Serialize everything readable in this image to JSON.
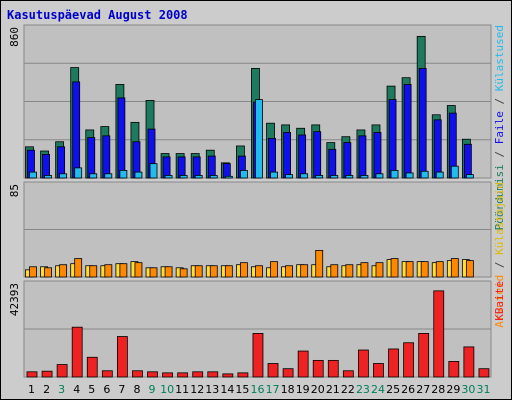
{
  "title": "Kasutuspäevad August 2008",
  "chart_data": [
    {
      "type": "bar",
      "panel": "top",
      "categories": [
        "1",
        "2",
        "3",
        "4",
        "5",
        "6",
        "7",
        "8",
        "9",
        "10",
        "11",
        "12",
        "13",
        "14",
        "15",
        "16",
        "17",
        "18",
        "19",
        "20",
        "21",
        "22",
        "23",
        "24",
        "25",
        "26",
        "27",
        "28",
        "29",
        "30",
        "31"
      ],
      "ymax_label": "860",
      "ylim": [
        0,
        860
      ],
      "series": [
        {
          "name": "Pöördumisi",
          "color": "#1e7a5e",
          "values": [
            185,
            160,
            215,
            655,
            285,
            305,
            555,
            330,
            460,
            145,
            145,
            145,
            165,
            90,
            190,
            650,
            325,
            315,
            295,
            315,
            210,
            245,
            285,
            315,
            545,
            595,
            840,
            375,
            430,
            230,
            0
          ]
        },
        {
          "name": "Faile",
          "color": "#1010ee",
          "values": [
            165,
            140,
            185,
            570,
            240,
            250,
            475,
            215,
            290,
            125,
            125,
            125,
            130,
            85,
            130,
            450,
            235,
            270,
            255,
            275,
            170,
            210,
            250,
            270,
            465,
            555,
            650,
            345,
            385,
            200,
            0
          ]
        },
        {
          "name": "Külastused",
          "color": "#22bbee",
          "values": [
            35,
            15,
            25,
            60,
            25,
            25,
            45,
            35,
            85,
            15,
            15,
            15,
            15,
            10,
            45,
            465,
            35,
            20,
            25,
            15,
            15,
            15,
            15,
            25,
            45,
            30,
            40,
            35,
            70,
            20,
            0
          ]
        }
      ]
    },
    {
      "type": "bar",
      "panel": "middle",
      "ymax_label": "85",
      "ylim": [
        0,
        85
      ],
      "series": [
        {
          "name": "Külastajaid",
          "color": "#ffdd33",
          "values": [
            7,
            10,
            11,
            13,
            11,
            11,
            13,
            15,
            9,
            10,
            9,
            11,
            11,
            11,
            12,
            10,
            9,
            10,
            12,
            12,
            10,
            11,
            12,
            11,
            17,
            15,
            15,
            14,
            16,
            17,
            0
          ]
        },
        {
          "name": "Arvuteid",
          "color": "#ff8800",
          "values": [
            10,
            9,
            12,
            18,
            11,
            12,
            13,
            14,
            9,
            10,
            8,
            11,
            11,
            11,
            14,
            11,
            15,
            11,
            12,
            26,
            12,
            12,
            14,
            14,
            18,
            15,
            15,
            15,
            18,
            16,
            0
          ]
        }
      ]
    },
    {
      "type": "bar",
      "panel": "bottom",
      "ymax_label": "42393",
      "ylim": [
        0,
        42393
      ],
      "series": [
        {
          "name": "KBaite",
          "color": "#ee2222",
          "values": [
            2500,
            2800,
            6000,
            24000,
            9500,
            3000,
            19500,
            3000,
            2500,
            2000,
            2000,
            2500,
            2500,
            1500,
            2000,
            21000,
            6500,
            4000,
            12500,
            8000,
            8000,
            3000,
            13000,
            6500,
            13500,
            16500,
            21000,
            41500,
            7500,
            14500,
            4000
          ]
        }
      ]
    }
  ],
  "x_labels": [
    {
      "label": "1",
      "color": "#000000"
    },
    {
      "label": "2",
      "color": "#000000"
    },
    {
      "label": "3",
      "color": "#00805a"
    },
    {
      "label": "4",
      "color": "#000000"
    },
    {
      "label": "5",
      "color": "#000000"
    },
    {
      "label": "6",
      "color": "#000000"
    },
    {
      "label": "7",
      "color": "#000000"
    },
    {
      "label": "8",
      "color": "#000000"
    },
    {
      "label": "9",
      "color": "#00805a"
    },
    {
      "label": "10",
      "color": "#00805a"
    },
    {
      "label": "11",
      "color": "#000000"
    },
    {
      "label": "12",
      "color": "#000000"
    },
    {
      "label": "13",
      "color": "#000000"
    },
    {
      "label": "14",
      "color": "#000000"
    },
    {
      "label": "15",
      "color": "#000000"
    },
    {
      "label": "16",
      "color": "#00805a"
    },
    {
      "label": "17",
      "color": "#00805a"
    },
    {
      "label": "18",
      "color": "#000000"
    },
    {
      "label": "19",
      "color": "#000000"
    },
    {
      "label": "20",
      "color": "#000000"
    },
    {
      "label": "21",
      "color": "#000000"
    },
    {
      "label": "22",
      "color": "#000000"
    },
    {
      "label": "23",
      "color": "#00805a"
    },
    {
      "label": "24",
      "color": "#00805a"
    },
    {
      "label": "25",
      "color": "#000000"
    },
    {
      "label": "26",
      "color": "#000000"
    },
    {
      "label": "27",
      "color": "#000000"
    },
    {
      "label": "28",
      "color": "#000000"
    },
    {
      "label": "29",
      "color": "#000000"
    },
    {
      "label": "30",
      "color": "#00805a"
    },
    {
      "label": "31",
      "color": "#00805a"
    }
  ],
  "right_legend": {
    "top": [
      {
        "text": "Pöördumisi",
        "color": "#1e7a5e"
      },
      {
        "text": " / ",
        "color": "#444444"
      },
      {
        "text": "Faile",
        "color": "#1010ee"
      },
      {
        "text": " / ",
        "color": "#444444"
      },
      {
        "text": "Külastused",
        "color": "#22bbee"
      }
    ],
    "middle": [
      {
        "text": "Arvuteid",
        "color": "#ff8800"
      },
      {
        "text": " / ",
        "color": "#444444"
      },
      {
        "text": "Külastajaid",
        "color": "#ddbb00"
      }
    ],
    "bottom": [
      {
        "text": "KBaite",
        "color": "#ee2222"
      }
    ]
  }
}
